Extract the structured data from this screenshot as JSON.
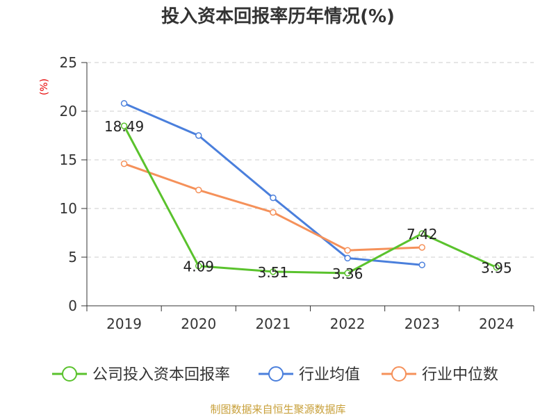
{
  "chart_data": {
    "type": "line",
    "title": "投入资本回报率历年情况(%)",
    "xlabel": "",
    "ylabel": "(%)",
    "categories": [
      "2019",
      "2020",
      "2021",
      "2022",
      "2023",
      "2024"
    ],
    "ylim": [
      0,
      25
    ],
    "yticks": [
      0,
      5,
      10,
      15,
      20,
      25
    ],
    "grid": true,
    "legend": "bottom",
    "series": [
      {
        "name": "公司投入资本回报率",
        "color": "#5ac22d",
        "values": [
          18.49,
          4.09,
          3.51,
          3.36,
          7.42,
          3.95
        ],
        "labels": [
          "18.49",
          "4.09",
          "3.51",
          "3.36",
          "7.42",
          "3.95"
        ]
      },
      {
        "name": "行业均值",
        "color": "#4a7fdc",
        "values": [
          20.8,
          17.5,
          11.1,
          4.9,
          4.2,
          null
        ]
      },
      {
        "name": "行业中位数",
        "color": "#f5915a",
        "values": [
          14.6,
          11.9,
          9.6,
          5.7,
          6.0,
          null
        ]
      }
    ]
  },
  "source": "制图数据来自恒生聚源数据库"
}
